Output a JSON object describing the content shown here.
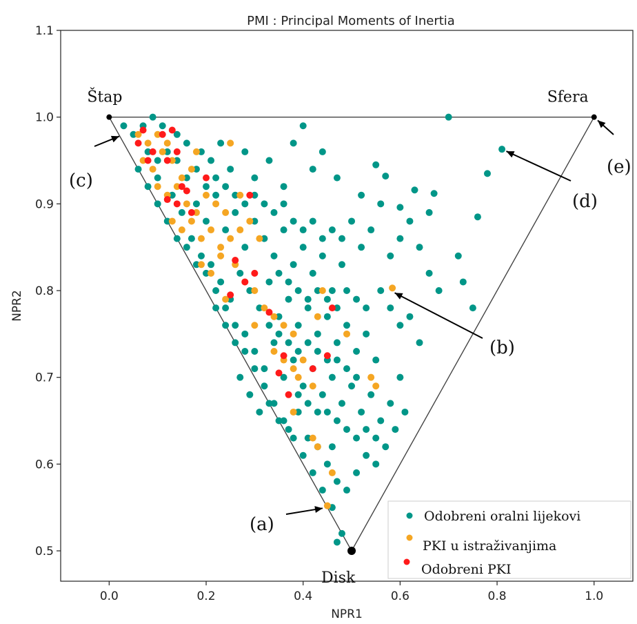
{
  "chart_data": {
    "type": "scatter",
    "title": "PMI : Principal Moments of Inertia",
    "xlabel": "NPR1",
    "ylabel": "NPR2",
    "xlim": [
      -0.1,
      1.08
    ],
    "ylim": [
      0.465,
      1.1
    ],
    "xticks": [
      "0.0",
      "0.2",
      "0.4",
      "0.6",
      "0.8",
      "1.0"
    ],
    "yticks": [
      "0.5",
      "0.6",
      "0.7",
      "0.8",
      "0.9",
      "1.0",
      "1.1"
    ],
    "grid": false,
    "legend_position": "bottom-right",
    "triangle": [
      [
        0,
        1
      ],
      [
        1,
        1
      ],
      [
        0.5,
        0.5
      ]
    ],
    "vertex_labels": [
      {
        "text": "Štap",
        "x": 0,
        "y": 1
      },
      {
        "text": "Sfera",
        "x": 1,
        "y": 1
      },
      {
        "text": "Disk",
        "x": 0.5,
        "y": 0.5
      }
    ],
    "annotations": [
      {
        "text": "(a)",
        "point": [
          0.45,
          0.55
        ]
      },
      {
        "text": "(b)",
        "point": [
          0.58,
          0.8
        ]
      },
      {
        "text": "(c)",
        "point": [
          0.03,
          0.98
        ]
      },
      {
        "text": "(d)",
        "point": [
          0.81,
          0.963
        ]
      },
      {
        "text": "(e)",
        "point": [
          1.0,
          1.0
        ]
      }
    ],
    "series": [
      {
        "name": "Odobreni oralni lijekovi",
        "color": "#009688",
        "points": [
          [
            0.03,
            0.99
          ],
          [
            0.05,
            0.98
          ],
          [
            0.07,
            0.99
          ],
          [
            0.09,
            1.0
          ],
          [
            0.11,
            0.99
          ],
          [
            0.12,
            0.96
          ],
          [
            0.14,
            0.98
          ],
          [
            0.16,
            0.97
          ],
          [
            0.19,
            0.96
          ],
          [
            0.21,
            0.95
          ],
          [
            0.23,
            0.97
          ],
          [
            0.25,
            0.94
          ],
          [
            0.28,
            0.96
          ],
          [
            0.3,
            0.93
          ],
          [
            0.33,
            0.95
          ],
          [
            0.36,
            0.92
          ],
          [
            0.38,
            0.97
          ],
          [
            0.42,
            0.94
          ],
          [
            0.44,
            0.96
          ],
          [
            0.47,
            0.93
          ],
          [
            0.4,
            0.99
          ],
          [
            0.7,
            1.0
          ],
          [
            0.81,
            0.963
          ],
          [
            0.78,
            0.935
          ],
          [
            0.76,
            0.885
          ],
          [
            0.55,
            0.945
          ],
          [
            0.57,
            0.932
          ],
          [
            0.6,
            0.896
          ],
          [
            0.63,
            0.916
          ],
          [
            0.67,
            0.912
          ],
          [
            0.06,
            0.94
          ],
          [
            0.1,
            0.93
          ],
          [
            0.13,
            0.91
          ],
          [
            0.15,
            0.89
          ],
          [
            0.18,
            0.9
          ],
          [
            0.2,
            0.88
          ],
          [
            0.22,
            0.91
          ],
          [
            0.24,
            0.87
          ],
          [
            0.26,
            0.89
          ],
          [
            0.28,
            0.85
          ],
          [
            0.3,
            0.88
          ],
          [
            0.32,
            0.86
          ],
          [
            0.34,
            0.84
          ],
          [
            0.36,
            0.87
          ],
          [
            0.38,
            0.83
          ],
          [
            0.4,
            0.85
          ],
          [
            0.42,
            0.82
          ],
          [
            0.44,
            0.84
          ],
          [
            0.46,
            0.8
          ],
          [
            0.48,
            0.83
          ],
          [
            0.17,
            0.86
          ],
          [
            0.19,
            0.84
          ],
          [
            0.21,
            0.83
          ],
          [
            0.23,
            0.81
          ],
          [
            0.25,
            0.79
          ],
          [
            0.27,
            0.82
          ],
          [
            0.29,
            0.8
          ],
          [
            0.31,
            0.78
          ],
          [
            0.33,
            0.81
          ],
          [
            0.35,
            0.77
          ],
          [
            0.37,
            0.79
          ],
          [
            0.39,
            0.76
          ],
          [
            0.41,
            0.78
          ],
          [
            0.43,
            0.75
          ],
          [
            0.45,
            0.77
          ],
          [
            0.47,
            0.74
          ],
          [
            0.49,
            0.76
          ],
          [
            0.51,
            0.73
          ],
          [
            0.53,
            0.75
          ],
          [
            0.55,
            0.72
          ],
          [
            0.22,
            0.78
          ],
          [
            0.24,
            0.76
          ],
          [
            0.26,
            0.74
          ],
          [
            0.28,
            0.75
          ],
          [
            0.3,
            0.73
          ],
          [
            0.32,
            0.71
          ],
          [
            0.34,
            0.74
          ],
          [
            0.36,
            0.7
          ],
          [
            0.38,
            0.72
          ],
          [
            0.4,
            0.69
          ],
          [
            0.42,
            0.71
          ],
          [
            0.44,
            0.68
          ],
          [
            0.46,
            0.7
          ],
          [
            0.48,
            0.67
          ],
          [
            0.5,
            0.69
          ],
          [
            0.52,
            0.66
          ],
          [
            0.54,
            0.68
          ],
          [
            0.56,
            0.65
          ],
          [
            0.58,
            0.67
          ],
          [
            0.6,
            0.7
          ],
          [
            0.27,
            0.7
          ],
          [
            0.29,
            0.68
          ],
          [
            0.31,
            0.66
          ],
          [
            0.33,
            0.67
          ],
          [
            0.35,
            0.65
          ],
          [
            0.37,
            0.64
          ],
          [
            0.39,
            0.66
          ],
          [
            0.41,
            0.63
          ],
          [
            0.43,
            0.62
          ],
          [
            0.45,
            0.6
          ],
          [
            0.47,
            0.58
          ],
          [
            0.49,
            0.57
          ],
          [
            0.51,
            0.59
          ],
          [
            0.53,
            0.61
          ],
          [
            0.55,
            0.6
          ],
          [
            0.57,
            0.62
          ],
          [
            0.59,
            0.64
          ],
          [
            0.61,
            0.66
          ],
          [
            0.48,
            0.52
          ],
          [
            0.47,
            0.51
          ],
          [
            0.56,
            0.8
          ],
          [
            0.58,
            0.78
          ],
          [
            0.6,
            0.76
          ],
          [
            0.62,
            0.77
          ],
          [
            0.64,
            0.74
          ],
          [
            0.66,
            0.82
          ],
          [
            0.68,
            0.8
          ],
          [
            0.73,
            0.81
          ],
          [
            0.75,
            0.78
          ],
          [
            0.72,
            0.84
          ],
          [
            0.52,
            0.85
          ],
          [
            0.54,
            0.87
          ],
          [
            0.56,
            0.9
          ],
          [
            0.58,
            0.84
          ],
          [
            0.6,
            0.86
          ],
          [
            0.62,
            0.88
          ],
          [
            0.64,
            0.85
          ],
          [
            0.66,
            0.89
          ],
          [
            0.52,
            0.91
          ],
          [
            0.5,
            0.88
          ],
          [
            0.08,
            0.96
          ],
          [
            0.1,
            0.95
          ],
          [
            0.14,
            0.95
          ],
          [
            0.16,
            0.93
          ],
          [
            0.18,
            0.94
          ],
          [
            0.2,
            0.92
          ],
          [
            0.22,
            0.93
          ],
          [
            0.24,
            0.92
          ],
          [
            0.26,
            0.91
          ],
          [
            0.28,
            0.9
          ],
          [
            0.3,
            0.91
          ],
          [
            0.32,
            0.9
          ],
          [
            0.34,
            0.89
          ],
          [
            0.36,
            0.9
          ],
          [
            0.38,
            0.88
          ],
          [
            0.4,
            0.87
          ],
          [
            0.42,
            0.88
          ],
          [
            0.44,
            0.86
          ],
          [
            0.46,
            0.87
          ],
          [
            0.48,
            0.86
          ],
          [
            0.12,
            0.88
          ],
          [
            0.14,
            0.86
          ],
          [
            0.16,
            0.85
          ],
          [
            0.18,
            0.83
          ],
          [
            0.2,
            0.82
          ],
          [
            0.22,
            0.8
          ],
          [
            0.24,
            0.78
          ],
          [
            0.26,
            0.76
          ],
          [
            0.28,
            0.73
          ],
          [
            0.3,
            0.71
          ],
          [
            0.32,
            0.69
          ],
          [
            0.34,
            0.67
          ],
          [
            0.36,
            0.65
          ],
          [
            0.38,
            0.63
          ],
          [
            0.4,
            0.61
          ],
          [
            0.42,
            0.59
          ],
          [
            0.44,
            0.57
          ],
          [
            0.46,
            0.55
          ],
          [
            0.1,
            0.9
          ],
          [
            0.08,
            0.92
          ],
          [
            0.35,
            0.82
          ],
          [
            0.37,
            0.81
          ],
          [
            0.39,
            0.8
          ],
          [
            0.41,
            0.79
          ],
          [
            0.43,
            0.8
          ],
          [
            0.45,
            0.79
          ],
          [
            0.47,
            0.78
          ],
          [
            0.49,
            0.8
          ],
          [
            0.51,
            0.79
          ],
          [
            0.53,
            0.78
          ],
          [
            0.33,
            0.76
          ],
          [
            0.35,
            0.75
          ],
          [
            0.37,
            0.74
          ],
          [
            0.39,
            0.73
          ],
          [
            0.41,
            0.74
          ],
          [
            0.43,
            0.73
          ],
          [
            0.45,
            0.72
          ],
          [
            0.47,
            0.72
          ],
          [
            0.49,
            0.71
          ],
          [
            0.51,
            0.7
          ],
          [
            0.39,
            0.68
          ],
          [
            0.41,
            0.67
          ],
          [
            0.43,
            0.66
          ],
          [
            0.45,
            0.66
          ],
          [
            0.47,
            0.65
          ],
          [
            0.49,
            0.64
          ],
          [
            0.51,
            0.63
          ],
          [
            0.53,
            0.64
          ],
          [
            0.55,
            0.63
          ],
          [
            0.46,
            0.62
          ]
        ]
      },
      {
        "name": "PKI u istraživanjima",
        "color": "#f5a623",
        "points": [
          [
            0.06,
            0.98
          ],
          [
            0.08,
            0.97
          ],
          [
            0.1,
            0.98
          ],
          [
            0.12,
            0.97
          ],
          [
            0.07,
            0.95
          ],
          [
            0.09,
            0.94
          ],
          [
            0.11,
            0.96
          ],
          [
            0.13,
            0.95
          ],
          [
            0.15,
            0.93
          ],
          [
            0.17,
            0.94
          ],
          [
            0.1,
            0.92
          ],
          [
            0.12,
            0.91
          ],
          [
            0.14,
            0.92
          ],
          [
            0.16,
            0.9
          ],
          [
            0.18,
            0.89
          ],
          [
            0.2,
            0.91
          ],
          [
            0.22,
            0.9
          ],
          [
            0.24,
            0.89
          ],
          [
            0.13,
            0.88
          ],
          [
            0.15,
            0.87
          ],
          [
            0.17,
            0.88
          ],
          [
            0.19,
            0.86
          ],
          [
            0.21,
            0.87
          ],
          [
            0.23,
            0.85
          ],
          [
            0.25,
            0.86
          ],
          [
            0.27,
            0.87
          ],
          [
            0.29,
            0.88
          ],
          [
            0.31,
            0.86
          ],
          [
            0.19,
            0.83
          ],
          [
            0.21,
            0.82
          ],
          [
            0.23,
            0.84
          ],
          [
            0.26,
            0.83
          ],
          [
            0.28,
            0.81
          ],
          [
            0.3,
            0.8
          ],
          [
            0.24,
            0.79
          ],
          [
            0.32,
            0.78
          ],
          [
            0.34,
            0.77
          ],
          [
            0.36,
            0.76
          ],
          [
            0.38,
            0.75
          ],
          [
            0.3,
            0.76
          ],
          [
            0.34,
            0.73
          ],
          [
            0.36,
            0.72
          ],
          [
            0.38,
            0.71
          ],
          [
            0.4,
            0.72
          ],
          [
            0.44,
            0.8
          ],
          [
            0.43,
            0.77
          ],
          [
            0.49,
            0.75
          ],
          [
            0.39,
            0.7
          ],
          [
            0.42,
            0.69
          ],
          [
            0.38,
            0.66
          ],
          [
            0.54,
            0.7
          ],
          [
            0.55,
            0.69
          ],
          [
            0.42,
            0.63
          ],
          [
            0.43,
            0.62
          ],
          [
            0.46,
            0.59
          ],
          [
            0.45,
            0.552
          ],
          [
            0.584,
            0.803
          ],
          [
            0.25,
            0.97
          ],
          [
            0.18,
            0.96
          ],
          [
            0.27,
            0.91
          ]
        ]
      },
      {
        "name": "Odobreni PKI",
        "color": "#ff1a1a",
        "points": [
          [
            0.07,
            0.985
          ],
          [
            0.11,
            0.98
          ],
          [
            0.13,
            0.985
          ],
          [
            0.06,
            0.97
          ],
          [
            0.09,
            0.96
          ],
          [
            0.14,
            0.96
          ],
          [
            0.08,
            0.95
          ],
          [
            0.12,
            0.95
          ],
          [
            0.15,
            0.92
          ],
          [
            0.16,
            0.915
          ],
          [
            0.12,
            0.905
          ],
          [
            0.14,
            0.9
          ],
          [
            0.17,
            0.89
          ],
          [
            0.2,
            0.93
          ],
          [
            0.26,
            0.835
          ],
          [
            0.28,
            0.81
          ],
          [
            0.25,
            0.795
          ],
          [
            0.3,
            0.82
          ],
          [
            0.33,
            0.775
          ],
          [
            0.36,
            0.725
          ],
          [
            0.35,
            0.705
          ],
          [
            0.37,
            0.68
          ],
          [
            0.42,
            0.71
          ],
          [
            0.45,
            0.725
          ],
          [
            0.46,
            0.78
          ],
          [
            0.29,
            0.91
          ]
        ]
      }
    ]
  }
}
